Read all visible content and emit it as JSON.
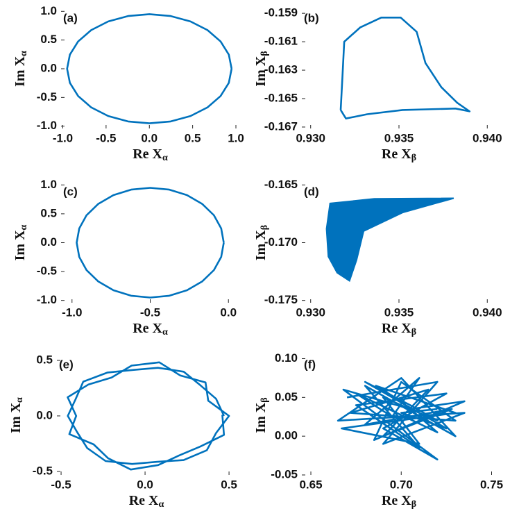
{
  "chart_data": [
    {
      "type": "line",
      "panel": "(a)",
      "color": "#0072bd",
      "xlabel": "Re X",
      "xlabel_sub": "α",
      "ylabel": "Im X",
      "ylabel_sub": "α",
      "xlim": [
        -1.02,
        1.04
      ],
      "ylim": [
        -1.04,
        1.04
      ],
      "xticks": [
        {
          "value": -1,
          "label": "-1.0"
        },
        -0.5,
        {
          "value": 0,
          "label": "0.0"
        },
        0.5,
        {
          "value": 1,
          "label": "1.0"
        }
      ],
      "yticks": [
        {
          "value": -1,
          "label": "-1.0"
        },
        -0.5,
        {
          "value": 0,
          "label": "0.0"
        },
        0.5,
        {
          "value": 1,
          "label": "1.0"
        }
      ],
      "x": [
        0.95,
        0.918,
        0.823,
        0.672,
        0.475,
        0.246,
        0,
        -0.246,
        -0.475,
        -0.672,
        -0.823,
        -0.918,
        -0.95,
        -0.918,
        -0.823,
        -0.672,
        -0.475,
        -0.246,
        0,
        0.246,
        0.475,
        0.672,
        0.823,
        0.918,
        0.95
      ],
      "y": [
        0,
        0.246,
        0.475,
        0.672,
        0.823,
        0.918,
        0.95,
        0.918,
        0.823,
        0.672,
        0.475,
        0.246,
        0,
        -0.246,
        -0.475,
        -0.672,
        -0.823,
        -0.918,
        -0.95,
        -0.918,
        -0.823,
        -0.672,
        -0.475,
        -0.246,
        0
      ]
    },
    {
      "type": "line",
      "panel": "(b)",
      "color": "#0072bd",
      "xlabel": "Re X",
      "xlabel_sub": "β",
      "ylabel": "Im X",
      "ylabel_sub": "β",
      "xlim": [
        0.9295,
        0.9405
      ],
      "ylim": [
        -0.1671,
        -0.1587
      ],
      "xticks": [
        {
          "value": 0.93,
          "label": "0.930"
        },
        0.935,
        {
          "value": 0.94,
          "label": "0.940"
        }
      ],
      "yticks": [
        -0.167,
        -0.165,
        -0.163,
        -0.161,
        -0.159
      ],
      "x": [
        0.9317,
        0.9318,
        0.9319,
        0.9328,
        0.934,
        0.9351,
        0.936,
        0.9365,
        0.9374,
        0.9383,
        0.939,
        0.9382,
        0.9352,
        0.9332,
        0.932,
        0.9317
      ],
      "y": [
        -0.1658,
        -0.1635,
        -0.161,
        -0.16,
        -0.1593,
        -0.1593,
        -0.1603,
        -0.1625,
        -0.1642,
        -0.1653,
        -0.1659,
        -0.1657,
        -0.1658,
        -0.1661,
        -0.1664,
        -0.1658
      ]
    },
    {
      "type": "line",
      "panel": "(c)",
      "color": "#0072bd",
      "xlabel": "Re X",
      "xlabel_sub": "α",
      "ylabel": "Im X",
      "ylabel_sub": "α",
      "xlim": [
        -1.07,
        0.07
      ],
      "ylim": [
        -1.04,
        1.04
      ],
      "xticks": [
        {
          "value": -1,
          "label": "-1.0"
        },
        -0.5,
        {
          "value": 0,
          "label": "0.0"
        }
      ],
      "yticks": [
        {
          "value": -1,
          "label": "-1.0"
        },
        -0.5,
        {
          "value": 0,
          "label": "0.0"
        },
        0.5,
        {
          "value": 1,
          "label": "1.0"
        }
      ],
      "x": [
        -0.03,
        -0.046,
        -0.093,
        -0.168,
        -0.265,
        -0.378,
        -0.5,
        -0.622,
        -0.735,
        -0.832,
        -0.907,
        -0.954,
        -0.97,
        -0.954,
        -0.907,
        -0.832,
        -0.735,
        -0.622,
        -0.5,
        -0.378,
        -0.265,
        -0.168,
        -0.093,
        -0.046,
        -0.03
      ],
      "y": [
        0,
        0.246,
        0.475,
        0.672,
        0.823,
        0.918,
        0.95,
        0.918,
        0.823,
        0.672,
        0.475,
        0.246,
        0,
        -0.246,
        -0.475,
        -0.672,
        -0.823,
        -0.918,
        -0.95,
        -0.918,
        -0.823,
        -0.672,
        -0.475,
        -0.246,
        0
      ]
    },
    {
      "type": "fill",
      "panel": "(d)",
      "color": "#0072bd",
      "xlabel": "Re X",
      "xlabel_sub": "β",
      "ylabel": "Im X",
      "ylabel_sub": "β",
      "xlim": [
        0.9295,
        0.9405
      ],
      "ylim": [
        -0.1752,
        -0.1648
      ],
      "xticks": [
        {
          "value": 0.93,
          "label": "0.930"
        },
        0.935,
        {
          "value": 0.94,
          "label": "0.940"
        }
      ],
      "yticks": [
        -0.175,
        {
          "value": -0.17,
          "label": "-0.170"
        },
        -0.165
      ],
      "x": [
        0.9311,
        0.9336,
        0.9381,
        0.9352,
        0.933,
        0.9326,
        0.9322,
        0.9315,
        0.931,
        0.9309,
        0.9311
      ],
      "y": [
        -0.1666,
        -0.1662,
        -0.16615,
        -0.1674,
        -0.169,
        -0.1715,
        -0.1733,
        -0.1726,
        -0.1712,
        -0.1688,
        -0.1666
      ]
    },
    {
      "type": "line",
      "panel": "(e)",
      "color": "#0072bd",
      "xlabel": "Re X",
      "xlabel_sub": "α",
      "ylabel": "Im X",
      "ylabel_sub": "α",
      "xlim": [
        -0.525,
        0.541
      ],
      "ylim": [
        -0.532,
        0.544
      ],
      "xticks": [
        -0.5,
        {
          "value": 0,
          "label": "0.0"
        },
        0.5
      ],
      "yticks": [
        -0.5,
        {
          "value": 0,
          "label": "0.0"
        },
        0.5
      ],
      "x": [
        0.47,
        0.423,
        0.329,
        0.23,
        0.077,
        -0.073,
        -0.225,
        -0.368,
        -0.414,
        -0.46,
        -0.404,
        -0.345,
        -0.235,
        -0.077,
        0.073,
        0.23,
        0.368,
        0.423,
        0.5,
        0.376,
        0.36,
        0.21,
        0.085,
        -0.08,
        -0.2,
        -0.337,
        -0.461,
        -0.41,
        -0.451,
        -0.306,
        -0.22,
        -0.085,
        0.078,
        0.205,
        0.329,
        0.47,
        0.46
      ],
      "y": [
        0,
        0.154,
        0.276,
        0.398,
        0.433,
        0.414,
        0.39,
        0.309,
        0.15,
        0,
        -0.147,
        -0.289,
        -0.407,
        -0.433,
        -0.414,
        -0.398,
        -0.309,
        -0.154,
        0,
        0.137,
        0.302,
        0.364,
        0.483,
        0.453,
        0.346,
        0.283,
        0.168,
        0,
        -0.164,
        -0.257,
        -0.381,
        -0.483,
        -0.443,
        -0.355,
        -0.276,
        -0.171,
        0.01
      ]
    },
    {
      "type": "line",
      "panel": "(f)",
      "color": "#0072bd",
      "xlabel": "Re X",
      "xlabel_sub": "β",
      "ylabel": "Im X",
      "ylabel_sub": "β",
      "xlim": [
        0.645,
        0.7525
      ],
      "ylim": [
        -0.05,
        0.104
      ],
      "xticks": [
        0.65,
        {
          "value": 0.7,
          "label": "0.70"
        },
        0.75
      ],
      "yticks": [
        -0.05,
        {
          "value": 0,
          "label": "0.00"
        },
        0.05,
        {
          "value": 0.1,
          "label": "0.10"
        }
      ],
      "x": [
        0.67,
        0.72,
        0.69,
        0.735,
        0.665,
        0.7,
        0.73,
        0.68,
        0.71,
        0.675,
        0.725,
        0.69,
        0.72,
        0.668,
        0.705,
        0.735,
        0.685,
        0.7,
        0.73,
        0.672,
        0.715,
        0.69,
        0.728,
        0.68,
        0.71,
        0.695,
        0.675,
        0.72,
        0.7,
        0.686,
        0.73,
        0.667,
        0.71,
        0.69,
        0.72,
        0.705,
        0.68,
        0.725,
        0.7,
        0.72
      ],
      "y": [
        0.05,
        0.07,
        -0.01,
        0.03,
        0.02,
        0.075,
        0.0,
        0.065,
        -0.015,
        0.04,
        0.055,
        0.01,
        -0.03,
        0.06,
        0.035,
        0.045,
        -0.005,
        0.07,
        0.02,
        0.03,
        0.06,
        0.0,
        0.035,
        0.015,
        0.075,
        0.025,
        0.055,
        0.005,
        0.045,
        0.065,
        0.03,
        0.01,
        -0.01,
        0.05,
        0.02,
        0.04,
        0.07,
        0.01,
        0.03,
        0.035
      ]
    }
  ]
}
